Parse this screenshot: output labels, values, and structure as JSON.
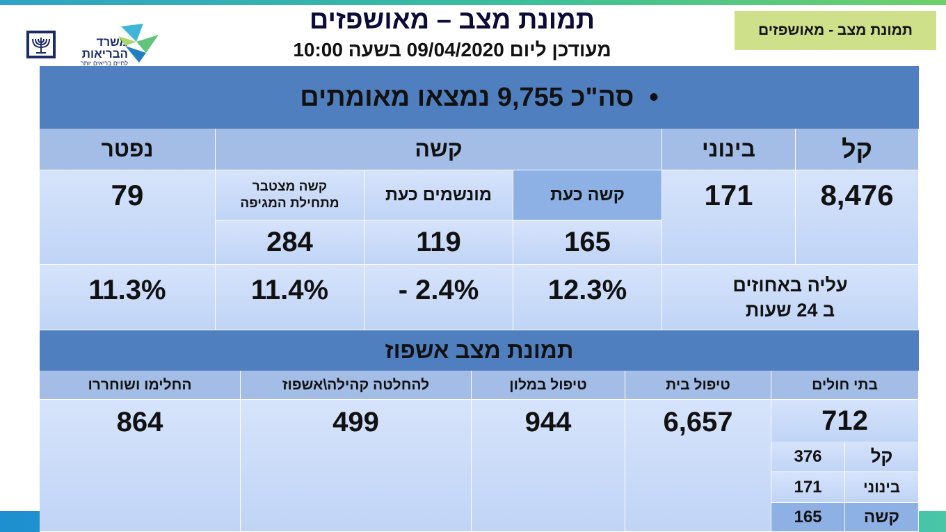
{
  "header": {
    "title": "תמונת מצב – מאושפזים",
    "subtitle": "מעודכן ליום 09/04/2020 בשעה 10:00",
    "corner_tag": "תמונת מצב - מאושפזים",
    "logo": {
      "name": "משרד הבריאות",
      "line1": "משרד",
      "line2": "הבריאות",
      "tagline": "לחיים בריאים יותר"
    }
  },
  "summary": {
    "total_label": "סה\"כ 9,755 נמצאו מאומתים"
  },
  "severity": {
    "headers": {
      "mild": "קל",
      "moderate": "בינוני",
      "severe": "קשה",
      "deceased": "נפטר"
    },
    "severe_sub": {
      "severe_now": "קשה כעת",
      "ventilated_now": "מונשמים כעת",
      "severe_cumulative": "קשה מצטבר מתחילת המגיפה"
    },
    "values": {
      "mild": "8,476",
      "moderate": "171",
      "severe_now": "165",
      "ventilated_now": "119",
      "severe_cumulative": "284",
      "deceased": "79"
    },
    "increase_label": "עליה באחוזים ב 24 שעות",
    "increase": {
      "severe_now": "12.3%",
      "ventilated_now": "- 2.4%",
      "severe_cumulative": "11.4%",
      "deceased": "11.3%"
    }
  },
  "hospitalization": {
    "title": "תמונת מצב אשפוז",
    "headers": {
      "hospitals": "בתי חולים",
      "home_care": "טיפול בית",
      "hotel_care": "טיפול במלון",
      "community": "להחלטה קהילה\\אשפוז",
      "recovered": "החלימו ושוחררו"
    },
    "values": {
      "hospitals": "712",
      "home_care": "6,657",
      "hotel_care": "944",
      "community": "499",
      "recovered": "864"
    },
    "breakdown": [
      {
        "label": "קל",
        "value": "376"
      },
      {
        "label": "בינוני",
        "value": "171"
      },
      {
        "label": "קשה",
        "value": "165"
      }
    ]
  }
}
